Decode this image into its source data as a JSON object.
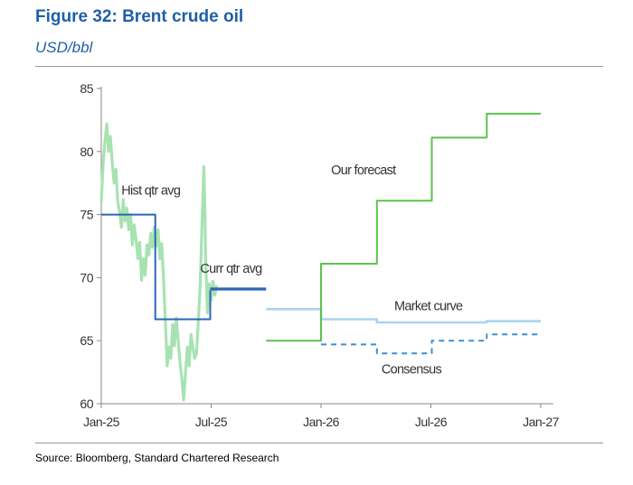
{
  "header": {
    "title": "Figure 32: Brent crude oil",
    "subtitle": "USD/bbl",
    "source": "Source: Bloomberg, Standard Chartered Research"
  },
  "chart_data": {
    "type": "line",
    "title": "Figure 32: Brent crude oil",
    "ylabel": "USD/bbl",
    "xlabel": "",
    "ylim": [
      60,
      85
    ],
    "yticks": [
      60,
      65,
      70,
      75,
      80,
      85
    ],
    "x_domain_months": [
      0,
      24
    ],
    "xticks": [
      {
        "label": "Jan-25",
        "m": 0
      },
      {
        "label": "Jul-25",
        "m": 6
      },
      {
        "label": "Jan-26",
        "m": 12
      },
      {
        "label": "Jul-26",
        "m": 18
      },
      {
        "label": "Jan-27",
        "m": 24
      }
    ],
    "grid": false,
    "legend": "none",
    "annotations": [
      {
        "text": "Hist qtr avg",
        "m": 1.1,
        "y": 76.6
      },
      {
        "text": "Curr qtr avg",
        "m": 5.4,
        "y": 70.4
      },
      {
        "text": "Our forecast",
        "m": 12.55,
        "y": 78.2
      },
      {
        "text": "Market curve",
        "m": 16.0,
        "y": 67.4
      },
      {
        "text": "Consensus",
        "m": 15.3,
        "y": 62.4
      }
    ],
    "series": [
      {
        "name": "Brent crude oil",
        "color": "#a7e3b2",
        "style": "daily",
        "points": [
          [
            0.0,
            76.0
          ],
          [
            0.1,
            79.0
          ],
          [
            0.2,
            80.8
          ],
          [
            0.3,
            82.2
          ],
          [
            0.4,
            80.0
          ],
          [
            0.5,
            81.2
          ],
          [
            0.6,
            79.0
          ],
          [
            0.7,
            77.5
          ],
          [
            0.8,
            78.6
          ],
          [
            0.9,
            76.0
          ],
          [
            1.0,
            75.2
          ],
          [
            1.1,
            74.0
          ],
          [
            1.2,
            76.2
          ],
          [
            1.3,
            74.5
          ],
          [
            1.4,
            75.5
          ],
          [
            1.5,
            73.8
          ],
          [
            1.6,
            75.0
          ],
          [
            1.7,
            72.6
          ],
          [
            1.8,
            74.2
          ],
          [
            1.9,
            73.0
          ],
          [
            2.0,
            71.5
          ],
          [
            2.1,
            72.8
          ],
          [
            2.2,
            69.8
          ],
          [
            2.3,
            71.5
          ],
          [
            2.4,
            70.2
          ],
          [
            2.5,
            72.6
          ],
          [
            2.6,
            71.8
          ],
          [
            2.7,
            73.5
          ],
          [
            2.8,
            72.4
          ],
          [
            2.9,
            74.0
          ],
          [
            3.0,
            72.5
          ],
          [
            3.1,
            73.8
          ],
          [
            3.2,
            71.5
          ],
          [
            3.3,
            72.7
          ],
          [
            3.4,
            70.0
          ],
          [
            3.5,
            66.5
          ],
          [
            3.6,
            63.0
          ],
          [
            3.7,
            64.5
          ],
          [
            3.8,
            63.6
          ],
          [
            3.9,
            66.3
          ],
          [
            4.0,
            64.6
          ],
          [
            4.1,
            66.8
          ],
          [
            4.2,
            65.0
          ],
          [
            4.3,
            63.2
          ],
          [
            4.4,
            62.0
          ],
          [
            4.5,
            60.3
          ],
          [
            4.6,
            62.4
          ],
          [
            4.7,
            64.5
          ],
          [
            4.8,
            63.0
          ],
          [
            4.9,
            65.5
          ],
          [
            5.0,
            64.5
          ],
          [
            5.1,
            63.6
          ],
          [
            5.2,
            64.0
          ],
          [
            5.3,
            66.5
          ],
          [
            5.4,
            69.5
          ],
          [
            5.5,
            74.2
          ],
          [
            5.55,
            76.5
          ],
          [
            5.6,
            78.8
          ],
          [
            5.65,
            76.0
          ],
          [
            5.7,
            71.5
          ],
          [
            5.8,
            67.2
          ],
          [
            5.9,
            69.5
          ],
          [
            6.0,
            68.2
          ],
          [
            6.1,
            69.7
          ],
          [
            6.2,
            68.6
          ],
          [
            6.3,
            69.4
          ]
        ]
      },
      {
        "name": "Hist qtr avg",
        "color": "#2b66b6",
        "style": "step",
        "points": [
          [
            0.0,
            75.0
          ],
          [
            2.95,
            75.0
          ],
          [
            2.95,
            66.7
          ],
          [
            5.95,
            66.7
          ],
          [
            5.95,
            69.0
          ]
        ]
      },
      {
        "name": "Curr qtr avg",
        "color": "#2b66b6",
        "style": "bold",
        "points": [
          [
            5.95,
            69.1
          ],
          [
            9.0,
            69.1
          ]
        ]
      },
      {
        "name": "Our forecast",
        "color": "#5cc24c",
        "style": "step",
        "points": [
          [
            9.0,
            65.0
          ],
          [
            12.0,
            65.0
          ],
          [
            12.0,
            71.1
          ],
          [
            15.05,
            71.1
          ],
          [
            15.05,
            76.1
          ],
          [
            18.05,
            76.1
          ],
          [
            18.05,
            81.1
          ],
          [
            21.05,
            81.1
          ],
          [
            21.05,
            83.0
          ],
          [
            24.0,
            83.0
          ]
        ]
      },
      {
        "name": "Market curve",
        "color": "#a9d3f0",
        "style": "line",
        "points": [
          [
            9.0,
            67.5
          ],
          [
            12.0,
            67.5
          ],
          [
            12.0,
            66.7
          ],
          [
            15.05,
            66.7
          ],
          [
            15.05,
            66.45
          ],
          [
            21.05,
            66.45
          ],
          [
            21.05,
            66.55
          ],
          [
            24.0,
            66.55
          ]
        ]
      },
      {
        "name": "Consensus",
        "color": "#3b8fd6",
        "style": "dashed",
        "points": [
          [
            12.0,
            64.7
          ],
          [
            15.05,
            64.7
          ],
          [
            15.05,
            64.0
          ],
          [
            18.05,
            64.0
          ],
          [
            18.05,
            65.0
          ],
          [
            21.05,
            65.0
          ],
          [
            21.05,
            65.5
          ],
          [
            24.0,
            65.5
          ]
        ]
      }
    ]
  }
}
